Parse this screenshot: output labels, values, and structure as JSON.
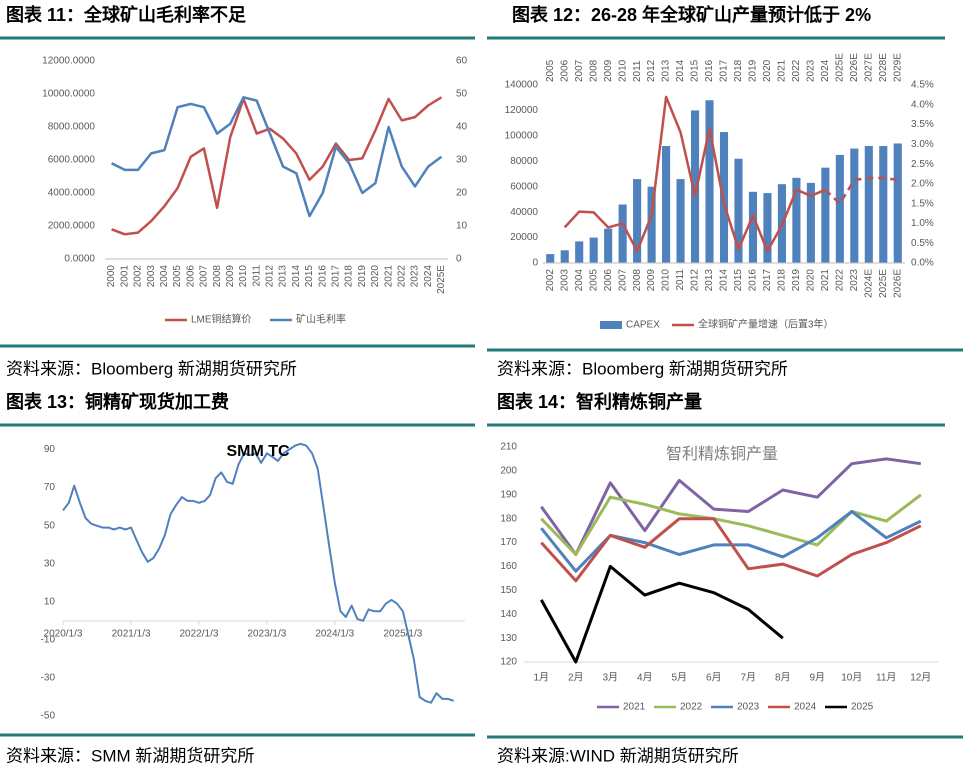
{
  "chart_data": [
    {
      "type": "line",
      "heading": "图表 11：全球矿山毛利率不足",
      "source": "资料来源：Bloomberg 新湖期货研究所",
      "categories": [
        "2000",
        "2001",
        "2002",
        "2003",
        "2004",
        "2005",
        "2006",
        "2007",
        "2008",
        "2009",
        "2010",
        "2011",
        "2012",
        "2013",
        "2014",
        "2015",
        "2016",
        "2017",
        "2018",
        "2019",
        "2020",
        "2021",
        "2022",
        "2023",
        "2024",
        "2025E"
      ],
      "series": [
        {
          "name": "LME铜结算价",
          "color": "#c0504d",
          "values": [
            1800,
            1500,
            1600,
            2300,
            3200,
            4300,
            6200,
            6700,
            3100,
            7400,
            9700,
            7600,
            7900,
            7300,
            6400,
            4800,
            5600,
            7000,
            6000,
            6100,
            7800,
            9700,
            8400,
            8600,
            9300,
            9800
          ]
        },
        {
          "name": "矿山毛利率",
          "color": "#4f81bd",
          "axis": "y2",
          "values": [
            29,
            27,
            27,
            32,
            33,
            46,
            47,
            46,
            38,
            41,
            49,
            48,
            38,
            28,
            26,
            13,
            20,
            34,
            29,
            20,
            23,
            40,
            28,
            22,
            28,
            31
          ]
        }
      ],
      "ylim": [
        0,
        12000
      ],
      "yticks": [
        {
          "value": 0,
          "label": "0.0000"
        },
        {
          "value": 2000,
          "label": "2000.0000"
        },
        {
          "value": 4000,
          "label": "4000.0000"
        },
        {
          "value": 6000,
          "label": "6000.0000"
        },
        {
          "value": 8000,
          "label": "8000.0000"
        },
        {
          "value": 10000,
          "label": "10000.0000"
        },
        {
          "value": 12000,
          "label": "12000.0000"
        }
      ],
      "y2lim": [
        0,
        60
      ],
      "y2ticks": [
        0,
        10,
        20,
        30,
        40,
        50,
        60
      ],
      "grid": false
    },
    {
      "type": "bar",
      "heading": "图表 12：26-28 年全球矿山产量预计低于 2%",
      "source": "资料来源：Bloomberg 新湖期货研究所",
      "categories": [
        "2002",
        "2003",
        "2004",
        "2005",
        "2006",
        "2007",
        "2008",
        "2009",
        "2010",
        "2011",
        "2012",
        "2013",
        "2014",
        "2015",
        "2016",
        "2017",
        "2018",
        "2019",
        "2020",
        "2021",
        "2022",
        "2023",
        "2024E",
        "2025E",
        "2026E"
      ],
      "top_categories": [
        "2005",
        "2006",
        "2007",
        "2008",
        "2009",
        "2010",
        "2011",
        "2012",
        "2013",
        "2014",
        "2015",
        "2016",
        "2017",
        "2018",
        "2019",
        "2020",
        "2021",
        "2022",
        "2023",
        "2024",
        "2025E",
        "2026E",
        "2027E",
        "2028E",
        "2029E"
      ],
      "series": [
        {
          "name": "CAPEX",
          "color": "#4f81bd",
          "type": "bar",
          "values": [
            7000,
            10000,
            17000,
            20000,
            27000,
            46000,
            66000,
            60000,
            92000,
            66000,
            120000,
            128000,
            103000,
            82000,
            56000,
            55000,
            62000,
            67000,
            63000,
            75000,
            85000,
            90000,
            92000,
            92000,
            94000
          ]
        },
        {
          "name": "全球铜矿产量增速（后置3年）",
          "color": "#c0504d",
          "type": "line",
          "axis": "y2",
          "dashed_from": "2021",
          "values": [
            null,
            0.9,
            1.3,
            1.28,
            0.9,
            1.0,
            0.3,
            1.2,
            4.2,
            3.3,
            1.7,
            3.4,
            1.5,
            0.35,
            1.2,
            0.3,
            0.95,
            1.85,
            1.7,
            1.85,
            1.5,
            2.1,
            2.15,
            2.15,
            2.1
          ]
        }
      ],
      "ylim": [
        0,
        140000
      ],
      "yticks": [
        0,
        20000,
        40000,
        60000,
        80000,
        100000,
        120000,
        140000
      ],
      "y2lim": [
        0,
        4.5
      ],
      "y2ticks": [
        {
          "value": 0,
          "label": "0.0%"
        },
        {
          "value": 0.5,
          "label": "0.5%"
        },
        {
          "value": 1,
          "label": "1.0%"
        },
        {
          "value": 1.5,
          "label": "1.5%"
        },
        {
          "value": 2,
          "label": "2.0%"
        },
        {
          "value": 2.5,
          "label": "2.5%"
        },
        {
          "value": 3,
          "label": "3.0%"
        },
        {
          "value": 3.5,
          "label": "3.5%"
        },
        {
          "value": 4,
          "label": "4.0%"
        },
        {
          "value": 4.5,
          "label": "4.5%"
        }
      ],
      "grid": false
    },
    {
      "type": "line",
      "heading": "图表 13：铜精矿现货加工费",
      "source": "资料来源：SMM 新湖期货研究所",
      "title": "SMM TC",
      "color": "#4f81bd",
      "x": [
        "2020/1/3",
        "2020/2/3",
        "2020/3/3",
        "2020/4/3",
        "2020/5/3",
        "2020/6/3",
        "2020/7/3",
        "2020/8/3",
        "2020/9/3",
        "2020/10/3",
        "2020/11/3",
        "2020/12/3",
        "2021/1/3",
        "2021/2/3",
        "2021/3/3",
        "2021/4/3",
        "2021/5/3",
        "2021/6/3",
        "2021/7/3",
        "2021/8/3",
        "2021/9/3",
        "2021/10/3",
        "2021/11/3",
        "2021/12/3",
        "2022/1/3",
        "2022/2/3",
        "2022/3/3",
        "2022/4/3",
        "2022/5/3",
        "2022/6/3",
        "2022/7/3",
        "2022/8/3",
        "2022/9/3",
        "2022/10/3",
        "2022/11/3",
        "2022/12/3",
        "2023/1/3",
        "2023/2/3",
        "2023/3/3",
        "2023/4/3",
        "2023/5/3",
        "2023/6/3",
        "2023/7/3",
        "2023/8/3",
        "2023/9/3",
        "2023/10/3",
        "2023/11/3",
        "2023/12/3",
        "2024/1/3",
        "2024/2/3",
        "2024/3/3",
        "2024/4/3",
        "2024/5/3",
        "2024/6/3",
        "2024/7/3",
        "2024/8/3",
        "2024/9/3",
        "2024/10/3",
        "2024/11/3",
        "2024/12/3",
        "2025/1/3",
        "2025/2/3",
        "2025/3/3",
        "2025/4/3",
        "2025/5/3",
        "2025/6/3",
        "2025/7/3",
        "2025/8/3",
        "2025/9/3",
        "2025/10/3"
      ],
      "values": [
        58,
        62,
        71,
        62,
        54,
        51,
        50,
        49,
        49,
        48,
        49,
        48,
        49,
        42,
        36,
        31,
        33,
        38,
        45,
        56,
        61,
        65,
        63,
        63,
        62,
        63,
        66,
        75,
        78,
        73,
        72,
        82,
        88,
        87,
        88,
        83,
        88,
        86,
        84,
        88,
        90,
        92,
        93,
        92,
        88,
        80,
        60,
        40,
        20,
        5,
        2,
        8,
        1,
        0,
        6,
        5,
        5,
        9,
        11,
        9,
        5,
        -8,
        -20,
        -40,
        -42,
        -43,
        -38,
        -41,
        -41,
        -42
      ],
      "xlim": [
        "2020/1/3",
        "2025/12/3"
      ],
      "xticks": [
        "2020/1/3",
        "2021/1/3",
        "2022/1/3",
        "2023/1/3",
        "2024/1/3",
        "2025/1/3"
      ],
      "ylim": [
        -50,
        95
      ],
      "yticks": [
        90,
        70,
        50,
        30,
        10,
        -10,
        -30,
        -50
      ],
      "grid": false
    },
    {
      "type": "line",
      "heading": "图表 14：智利精炼铜产量",
      "source": "资料来源:WIND 新湖期货研究所",
      "title": "智利精炼铜产量",
      "categories": [
        "1月",
        "2月",
        "3月",
        "4月",
        "5月",
        "6月",
        "7月",
        "8月",
        "9月",
        "10月",
        "11月",
        "12月"
      ],
      "series": [
        {
          "name": "2021",
          "color": "#8064a2",
          "values": [
            185,
            165,
            195,
            175,
            196,
            184,
            183,
            192,
            189,
            203,
            205,
            203
          ]
        },
        {
          "name": "2022",
          "color": "#9bbb59",
          "values": [
            180,
            165,
            189,
            186,
            182,
            180,
            177,
            173,
            169,
            183,
            179,
            190
          ]
        },
        {
          "name": "2023",
          "color": "#4f81bd",
          "values": [
            176,
            158,
            173,
            170,
            165,
            169,
            169,
            164,
            172,
            183,
            172,
            179
          ]
        },
        {
          "name": "2024",
          "color": "#c0504d",
          "values": [
            170,
            154,
            173,
            168,
            180,
            180,
            159,
            161,
            156,
            165,
            170,
            177
          ]
        },
        {
          "name": "2025",
          "color": "#000000",
          "values": [
            146,
            120,
            160,
            148,
            153,
            149,
            142,
            130,
            null,
            null,
            null,
            null
          ]
        }
      ],
      "ylim": [
        120,
        210
      ],
      "yticks": [
        120,
        130,
        140,
        150,
        160,
        170,
        180,
        190,
        200,
        210
      ],
      "grid": false
    }
  ]
}
